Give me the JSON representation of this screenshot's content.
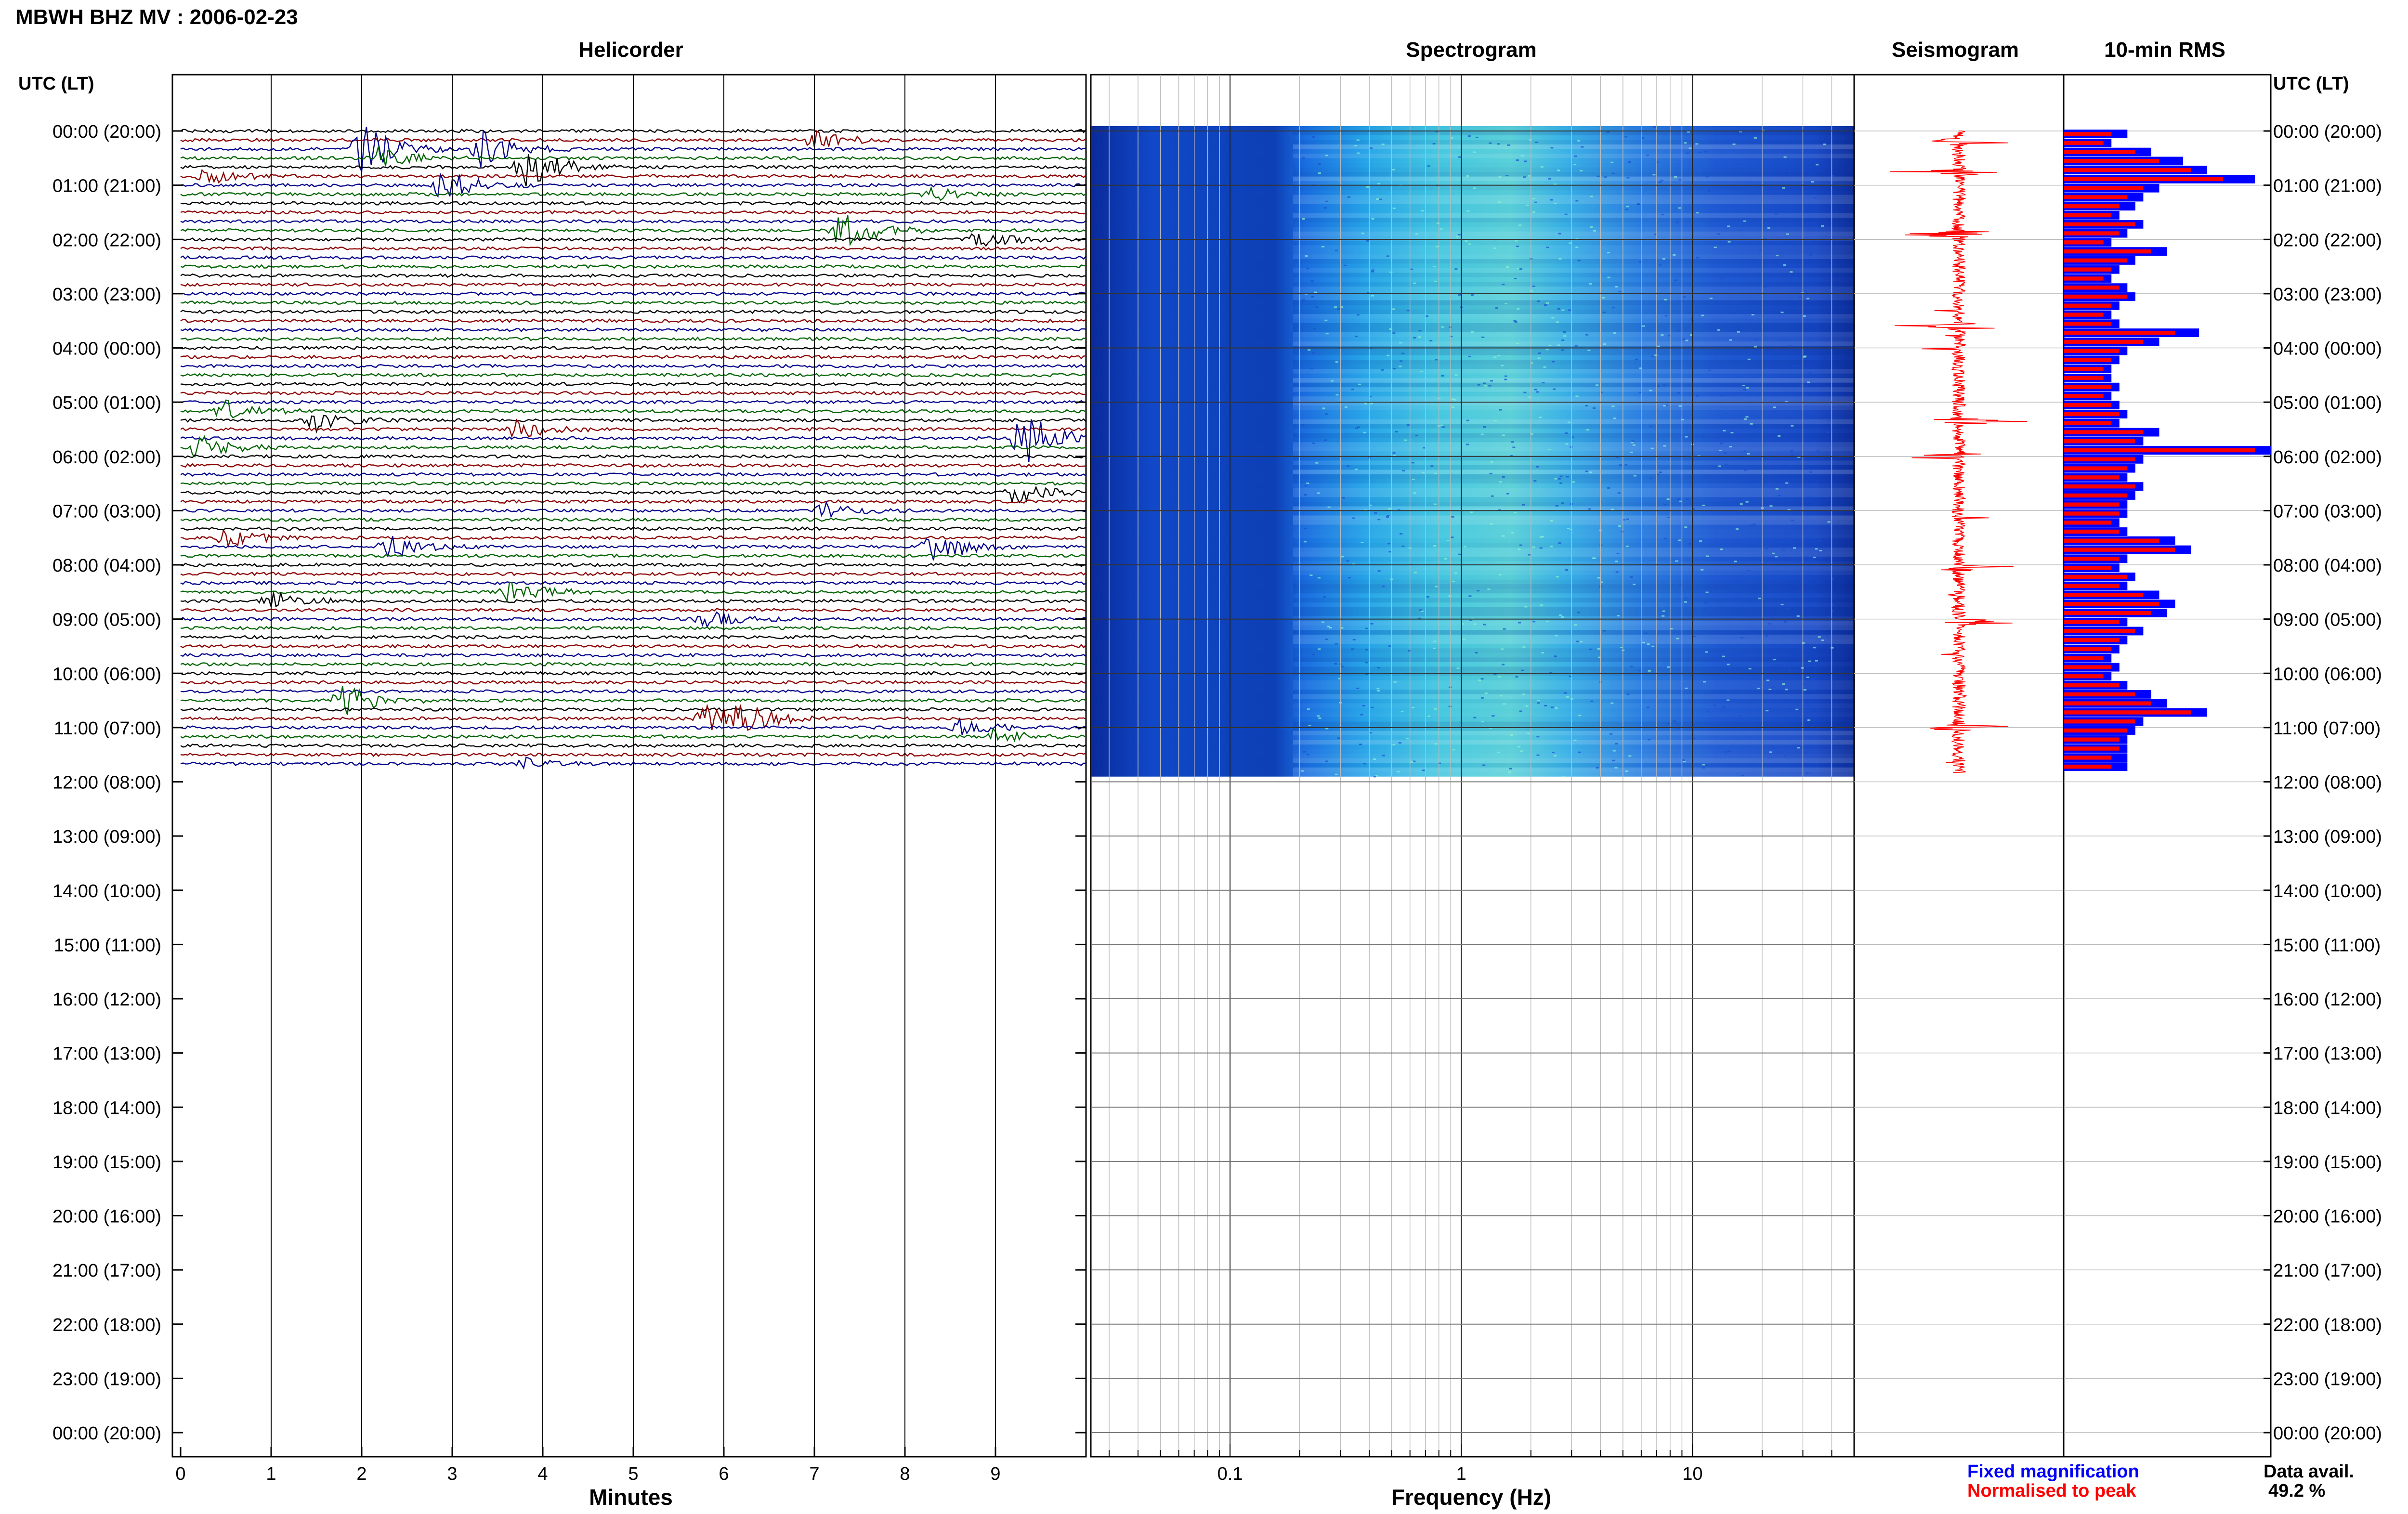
{
  "page_title": "MBWH BHZ MV : 2006-02-23",
  "panels": {
    "helicorder": "Helicorder",
    "spectrogram": "Spectrogram",
    "seismogram": "Seismogram",
    "rms": "10-min RMS"
  },
  "axis_labels": {
    "left_header": "UTC (LT)",
    "right_header": "UTC (LT)",
    "helicorder_x": "Minutes",
    "spectrogram_x": "Frequency (Hz)"
  },
  "legend": {
    "fixed": "Fixed magnification",
    "normalised": "Normalised to peak",
    "fixed_color": "#0000ff",
    "normalised_color": "#ff0000"
  },
  "data_avail": {
    "label": "Data avail.",
    "value": "49.2 %"
  },
  "colors": {
    "trace_cycle": [
      "#000000",
      "#8b0000",
      "#00008b",
      "#006400"
    ],
    "rms_fixed": "#0000ff",
    "rms_normalised": "#ff0000",
    "seismogram": "#ff0000"
  },
  "chart_data": {
    "type": "helicorder",
    "station": "MBWH BHZ MV",
    "date": "2006-02-23",
    "time_labels": [
      "00:00 (20:00)",
      "01:00 (21:00)",
      "02:00 (22:00)",
      "03:00 (23:00)",
      "04:00 (00:00)",
      "05:00 (01:00)",
      "06:00 (02:00)",
      "07:00 (03:00)",
      "08:00 (04:00)",
      "09:00 (05:00)",
      "10:00 (06:00)",
      "11:00 (07:00)",
      "12:00 (08:00)",
      "13:00 (09:00)",
      "14:00 (10:00)",
      "15:00 (11:00)",
      "16:00 (12:00)",
      "17:00 (13:00)",
      "18:00 (14:00)",
      "19:00 (15:00)",
      "20:00 (16:00)",
      "21:00 (17:00)",
      "22:00 (18:00)",
      "23:00 (19:00)",
      "00:00 (20:00)"
    ],
    "helicorder": {
      "x_ticks": [
        "0",
        "1",
        "2",
        "3",
        "4",
        "5",
        "6",
        "7",
        "8",
        "9"
      ],
      "xlim": [
        0,
        10
      ],
      "minutes_per_line": 10,
      "lines_recorded": 71,
      "events": [
        {
          "line": 1,
          "minute": 7.0,
          "amp": 0.5
        },
        {
          "line": 2,
          "minute": 2.0,
          "amp": 1.3
        },
        {
          "line": 2,
          "minute": 3.3,
          "amp": 1.0
        },
        {
          "line": 3,
          "minute": 2.2,
          "amp": 0.6
        },
        {
          "line": 4,
          "minute": 3.8,
          "amp": 1.2
        },
        {
          "line": 5,
          "minute": 0.3,
          "amp": 0.4
        },
        {
          "line": 6,
          "minute": 2.9,
          "amp": 0.8
        },
        {
          "line": 7,
          "minute": 8.3,
          "amp": 0.3
        },
        {
          "line": 11,
          "minute": 7.3,
          "amp": 1.0
        },
        {
          "line": 12,
          "minute": 8.8,
          "amp": 0.5
        },
        {
          "line": 31,
          "minute": 0.5,
          "amp": 0.6
        },
        {
          "line": 32,
          "minute": 1.5,
          "amp": 0.5
        },
        {
          "line": 33,
          "minute": 3.7,
          "amp": 0.5
        },
        {
          "line": 34,
          "minute": 9.3,
          "amp": 1.6
        },
        {
          "line": 35,
          "minute": 0.2,
          "amp": 0.6
        },
        {
          "line": 40,
          "minute": 9.2,
          "amp": 0.6
        },
        {
          "line": 42,
          "minute": 7.1,
          "amp": 0.4
        },
        {
          "line": 45,
          "minute": 0.5,
          "amp": 0.5
        },
        {
          "line": 46,
          "minute": 2.3,
          "amp": 0.6
        },
        {
          "line": 46,
          "minute": 8.3,
          "amp": 0.9
        },
        {
          "line": 51,
          "minute": 3.6,
          "amp": 0.6
        },
        {
          "line": 52,
          "minute": 1.0,
          "amp": 0.5
        },
        {
          "line": 54,
          "minute": 5.8,
          "amp": 0.4
        },
        {
          "line": 63,
          "minute": 1.8,
          "amp": 0.9
        },
        {
          "line": 65,
          "minute": 5.8,
          "amp": 0.8
        },
        {
          "line": 65,
          "minute": 6.2,
          "amp": 0.6
        },
        {
          "line": 66,
          "minute": 8.6,
          "amp": 0.5
        },
        {
          "line": 67,
          "minute": 9.0,
          "amp": 0.4
        },
        {
          "line": 70,
          "minute": 3.8,
          "amp": 0.3
        }
      ]
    },
    "spectrogram": {
      "x_scale": "log",
      "xlim": [
        0.025,
        50
      ],
      "x_ticks": [
        "0.1",
        "1",
        "10"
      ],
      "x_tick_values": [
        0.1,
        1,
        10
      ]
    },
    "seismogram": {
      "spikes_at_hours": [
        0.2,
        0.75,
        1.9,
        3.6,
        5.35,
        6.0,
        8.05,
        9.05,
        11.0
      ]
    },
    "rms": {
      "interval_minutes": 10,
      "fixed": [
        0.4,
        0.3,
        0.55,
        0.75,
        0.9,
        1.2,
        0.6,
        0.5,
        0.45,
        0.35,
        0.5,
        0.4,
        0.3,
        0.65,
        0.45,
        0.35,
        0.3,
        0.4,
        0.45,
        0.35,
        0.3,
        0.35,
        0.85,
        0.6,
        0.4,
        0.35,
        0.3,
        0.3,
        0.35,
        0.3,
        0.35,
        0.4,
        0.35,
        0.6,
        0.5,
        1.3,
        0.5,
        0.45,
        0.4,
        0.5,
        0.45,
        0.4,
        0.4,
        0.35,
        0.4,
        0.7,
        0.8,
        0.4,
        0.35,
        0.45,
        0.4,
        0.6,
        0.7,
        0.65,
        0.4,
        0.5,
        0.4,
        0.35,
        0.3,
        0.35,
        0.3,
        0.4,
        0.55,
        0.65,
        0.9,
        0.5,
        0.45,
        0.4,
        0.4,
        0.4,
        0.4
      ],
      "normalised": [
        0.3,
        0.25,
        0.45,
        0.6,
        0.8,
        1.0,
        0.5,
        0.4,
        0.35,
        0.3,
        0.45,
        0.35,
        0.25,
        0.55,
        0.4,
        0.3,
        0.25,
        0.35,
        0.4,
        0.3,
        0.25,
        0.3,
        0.7,
        0.5,
        0.35,
        0.3,
        0.25,
        0.25,
        0.3,
        0.25,
        0.3,
        0.35,
        0.3,
        0.5,
        0.45,
        1.2,
        0.45,
        0.4,
        0.35,
        0.45,
        0.4,
        0.35,
        0.35,
        0.3,
        0.35,
        0.6,
        0.7,
        0.35,
        0.3,
        0.4,
        0.35,
        0.5,
        0.6,
        0.55,
        0.35,
        0.45,
        0.35,
        0.3,
        0.25,
        0.3,
        0.25,
        0.35,
        0.45,
        0.55,
        0.8,
        0.45,
        0.4,
        0.35,
        0.35,
        0.3,
        0.3
      ]
    }
  }
}
